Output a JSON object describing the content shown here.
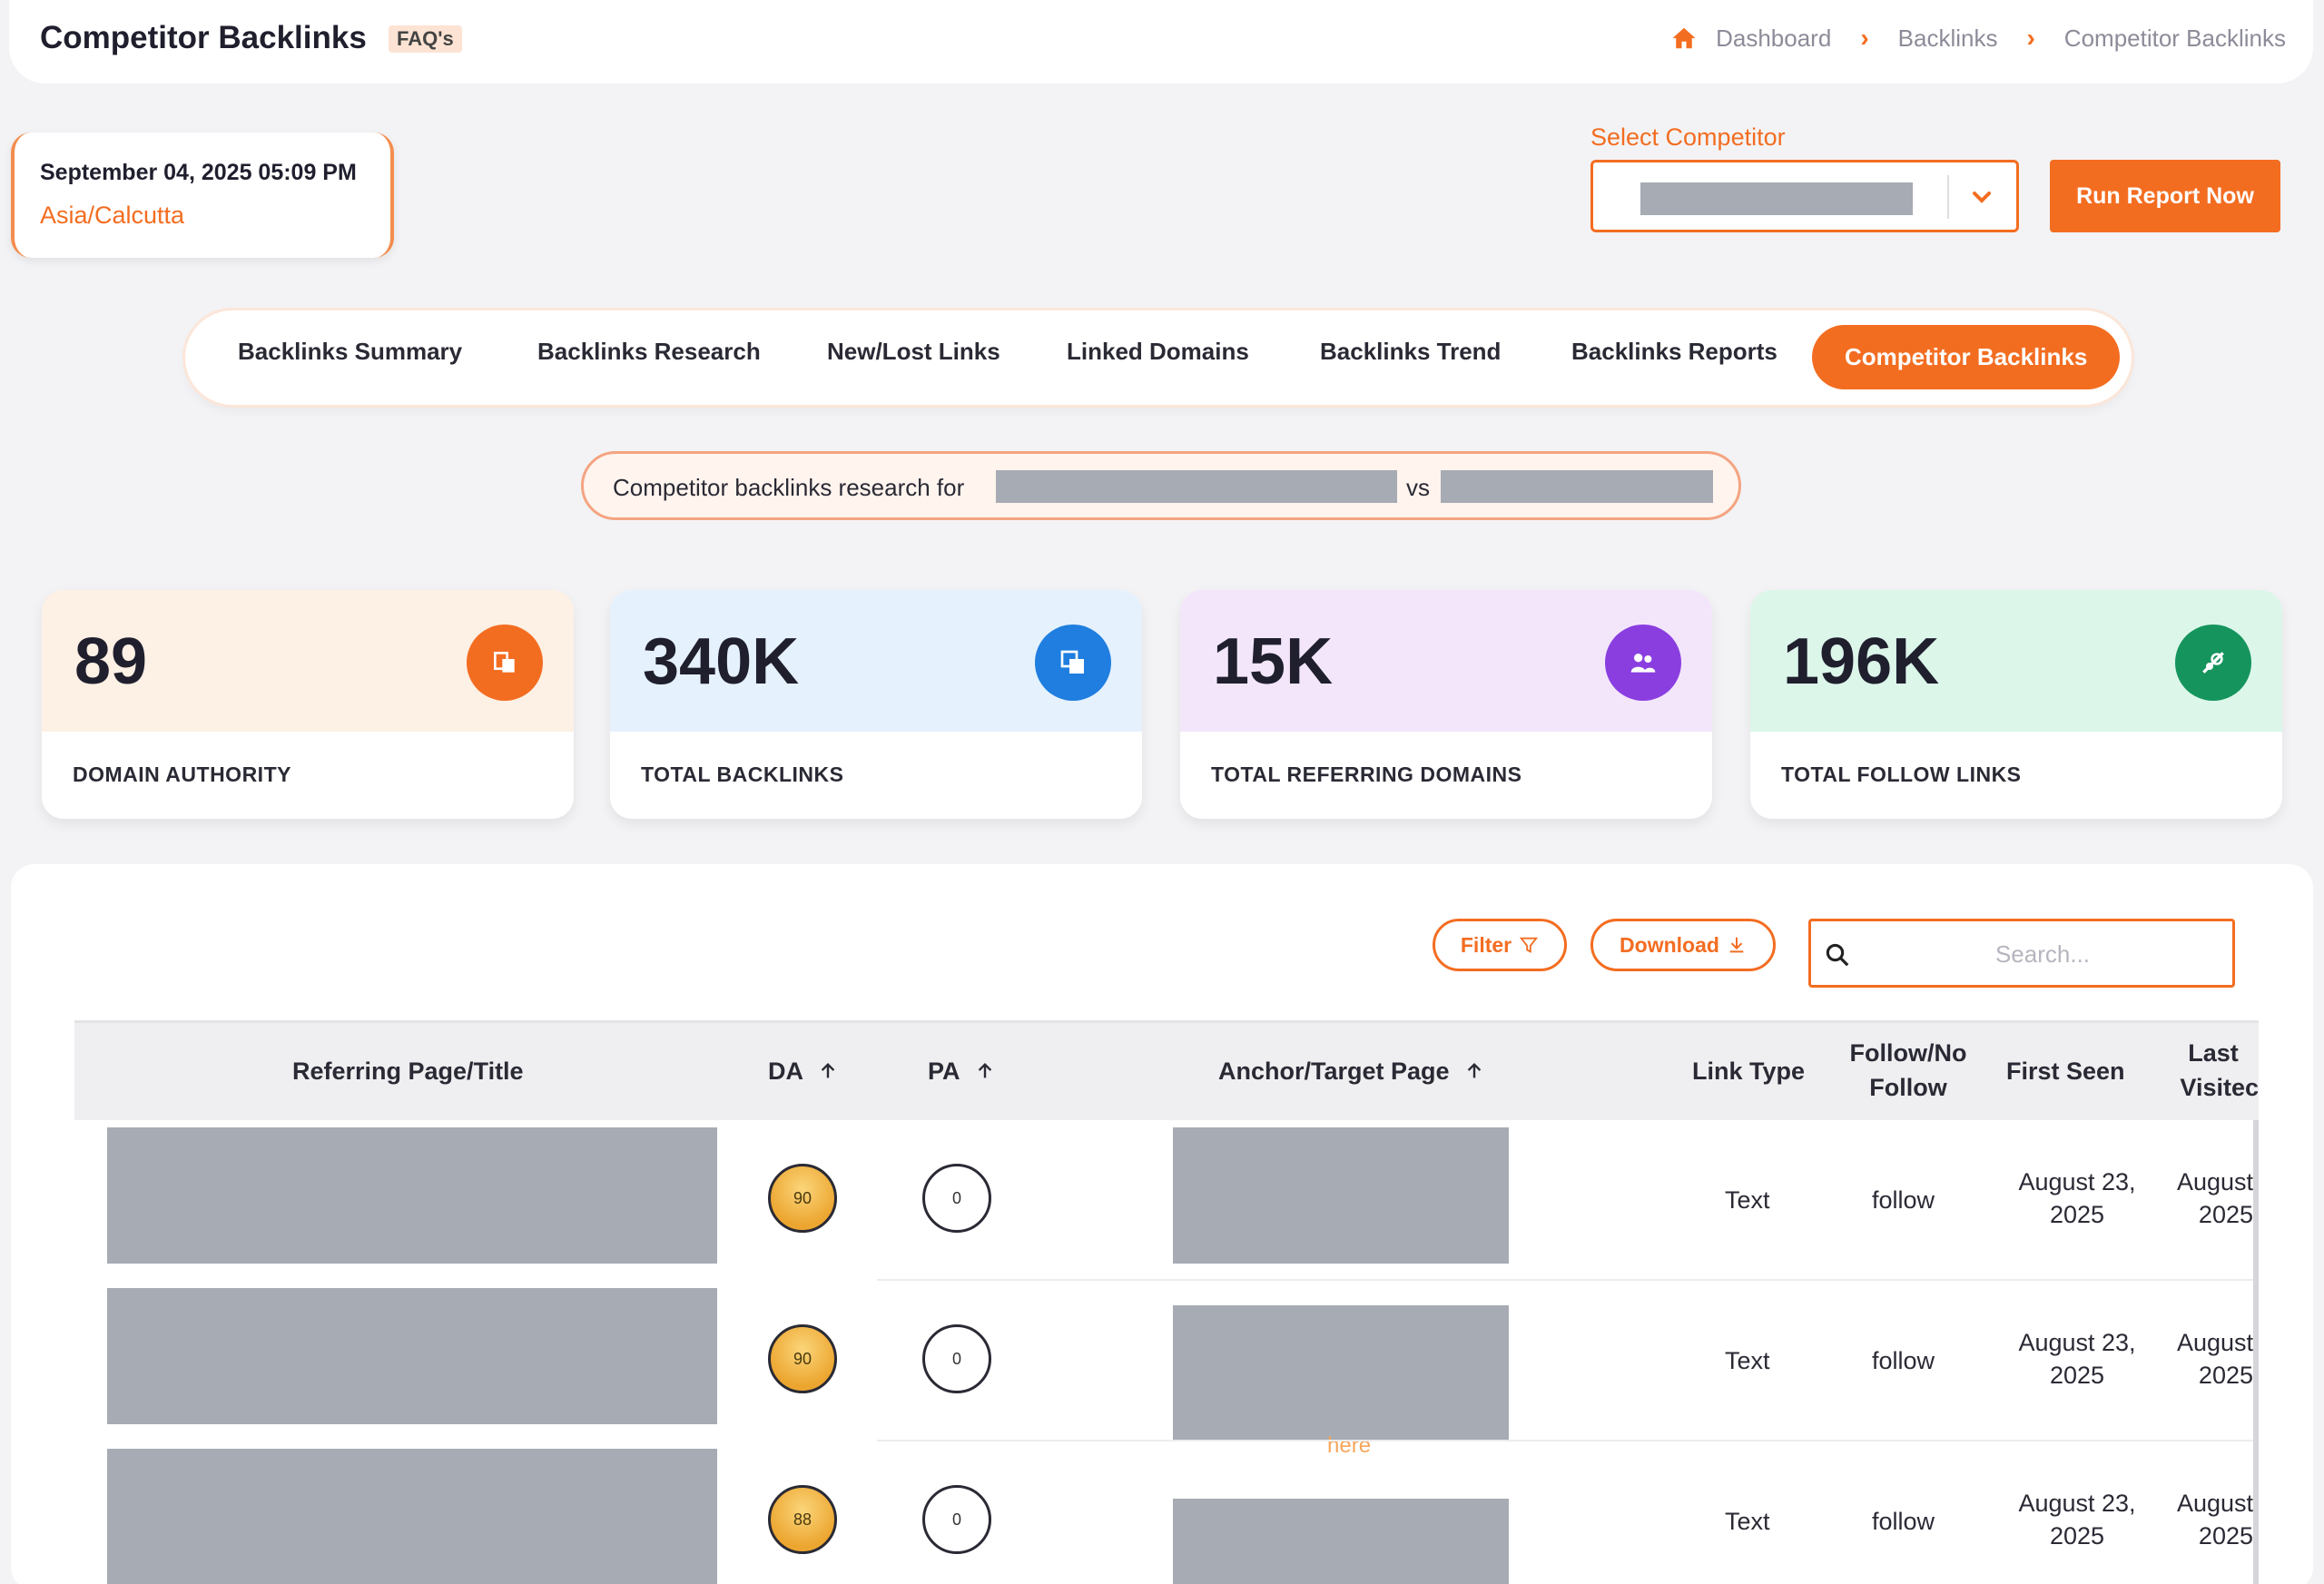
{
  "header": {
    "title": "Competitor Backlinks",
    "faq": "FAQ's",
    "breadcrumb": [
      "Dashboard",
      "Backlinks",
      "Competitor Backlinks"
    ]
  },
  "time_card": {
    "datetime": "September 04, 2025 05:09 PM",
    "timezone": "Asia/Calcutta"
  },
  "competitor": {
    "label": "Select Competitor",
    "run_button": "Run Report Now"
  },
  "tabs": [
    {
      "label": "Backlinks Summary"
    },
    {
      "label": "Backlinks Research"
    },
    {
      "label": "New/Lost Links"
    },
    {
      "label": "Linked Domains"
    },
    {
      "label": "Backlinks Trend"
    },
    {
      "label": "Backlinks Reports"
    },
    {
      "label": "Competitor Backlinks",
      "active": true
    }
  ],
  "research": {
    "prefix": "Competitor backlinks research for",
    "vs": "vs"
  },
  "stats": [
    {
      "value": "89",
      "label": "DOMAIN AUTHORITY",
      "icon": "domain-authority-icon",
      "bg": "#fdf0e4",
      "color": "#f36d21"
    },
    {
      "value": "340K",
      "label": "TOTAL BACKLINKS",
      "icon": "backlinks-icon",
      "bg": "#e5f1fd",
      "color": "#1f7ee0"
    },
    {
      "value": "15K",
      "label": "TOTAL REFERRING DOMAINS",
      "icon": "referring-domains-icon",
      "bg": "#f3e6fb",
      "color": "#8a3ee0"
    },
    {
      "value": "196K",
      "label": "TOTAL FOLLOW LINKS",
      "icon": "follow-links-icon",
      "bg": "#dcf6ea",
      "color": "#15945d"
    }
  ],
  "toolbar": {
    "filter": "Filter",
    "download": "Download",
    "search_placeholder": "Search..."
  },
  "table": {
    "columns": {
      "referring": "Referring Page/Title",
      "da": "DA",
      "pa": "PA",
      "anchor": "Anchor/Target Page",
      "link_type": "Link Type",
      "follow_1": "Follow/No",
      "follow_2": "Follow",
      "first_seen": "First Seen",
      "last_1": "Last",
      "last_2": "Visitec"
    },
    "rows": [
      {
        "da": "90",
        "pa": "0",
        "link_type": "Text",
        "follow": "follow",
        "first_seen_1": "August 23,",
        "first_seen_2": "2025",
        "last_1": "August",
        "last_2": "2025",
        "anchor_text": ""
      },
      {
        "da": "90",
        "pa": "0",
        "link_type": "Text",
        "follow": "follow",
        "first_seen_1": "August 23,",
        "first_seen_2": "2025",
        "last_1": "August",
        "last_2": "2025",
        "anchor_text": "here"
      },
      {
        "da": "88",
        "pa": "0",
        "link_type": "Text",
        "follow": "follow",
        "first_seen_1": "August 23,",
        "first_seen_2": "2025",
        "last_1": "August",
        "last_2": "2025",
        "anchor_text": ""
      }
    ]
  }
}
